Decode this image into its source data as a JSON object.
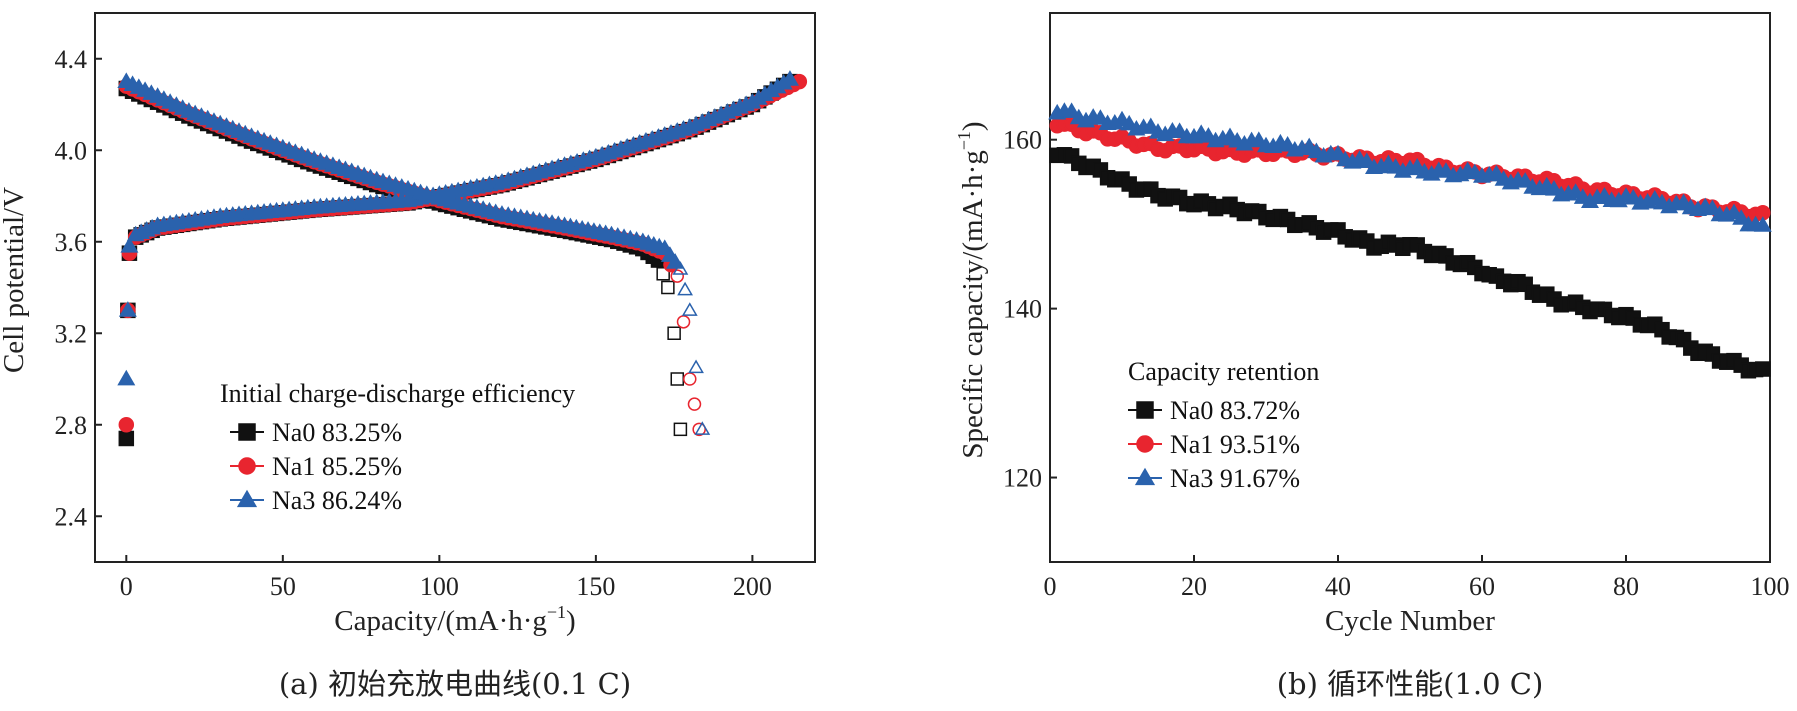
{
  "colors": {
    "Na0": "#111111",
    "Na1": "#e8252f",
    "Na3": "#2a62ad",
    "axis": "#222222"
  },
  "chart_data": [
    {
      "type": "scatter",
      "caption": "(a) 初始充放电曲线(0.1 C)",
      "xlabel": "Capacity/(mA·h·g",
      "xlabel_sup": "−1",
      "xlabel_end": ")",
      "ylabel": "Cell potential/V",
      "xlim": [
        -10,
        220
      ],
      "ylim": [
        2.2,
        4.6
      ],
      "xticks": [
        0,
        50,
        100,
        150,
        200
      ],
      "yticks": [
        2.4,
        2.8,
        3.2,
        3.6,
        4.0,
        4.4
      ],
      "ytick_labels": [
        "2.4",
        "2.8",
        "3.2",
        "3.6",
        "4.0",
        "4.4"
      ],
      "legend_title": "Initial charge-discharge efficiency",
      "legend_position": "lower-left",
      "series": [
        {
          "name": "Na0",
          "label": "Na0 83.25%",
          "marker": "square",
          "charge": [
            [
              0,
              2.74
            ],
            [
              0.5,
              3.3
            ],
            [
              1,
              3.55
            ],
            [
              3,
              3.62
            ],
            [
              10,
              3.66
            ],
            [
              30,
              3.7
            ],
            [
              60,
              3.74
            ],
            [
              90,
              3.77
            ],
            [
              120,
              3.85
            ],
            [
              150,
              3.96
            ],
            [
              180,
              4.09
            ],
            [
              200,
              4.2
            ],
            [
              212,
              4.3
            ]
          ],
          "discharge": [
            [
              0,
              4.27
            ],
            [
              20,
              4.15
            ],
            [
              40,
              4.04
            ],
            [
              60,
              3.94
            ],
            [
              80,
              3.85
            ],
            [
              100,
              3.77
            ],
            [
              120,
              3.7
            ],
            [
              140,
              3.65
            ],
            [
              155,
              3.61
            ],
            [
              165,
              3.57
            ],
            [
              170,
              3.52
            ],
            [
              173,
              3.4
            ],
            [
              175,
              3.2
            ],
            [
              176,
              3.0
            ],
            [
              177,
              2.78
            ]
          ]
        },
        {
          "name": "Na1",
          "label": "Na1 85.25%",
          "marker": "circle",
          "charge": [
            [
              0,
              2.8
            ],
            [
              0.5,
              3.3
            ],
            [
              1,
              3.55
            ],
            [
              3,
              3.62
            ],
            [
              10,
              3.66
            ],
            [
              30,
              3.7
            ],
            [
              60,
              3.74
            ],
            [
              90,
              3.77
            ],
            [
              120,
              3.85
            ],
            [
              150,
              3.96
            ],
            [
              180,
              4.09
            ],
            [
              200,
              4.2
            ],
            [
              215,
              4.3
            ]
          ],
          "discharge": [
            [
              0,
              4.28
            ],
            [
              20,
              4.16
            ],
            [
              40,
              4.05
            ],
            [
              60,
              3.95
            ],
            [
              80,
              3.86
            ],
            [
              100,
              3.78
            ],
            [
              120,
              3.71
            ],
            [
              140,
              3.66
            ],
            [
              155,
              3.62
            ],
            [
              165,
              3.59
            ],
            [
              172,
              3.55
            ],
            [
              176,
              3.45
            ],
            [
              178,
              3.25
            ],
            [
              180,
              3.0
            ],
            [
              183,
              2.78
            ]
          ]
        },
        {
          "name": "Na3",
          "label": "Na3 86.24%",
          "marker": "triangle",
          "charge": [
            [
              0,
              3.0
            ],
            [
              0.5,
              3.3
            ],
            [
              1,
              3.58
            ],
            [
              3,
              3.63
            ],
            [
              10,
              3.67
            ],
            [
              30,
              3.71
            ],
            [
              60,
              3.75
            ],
            [
              90,
              3.78
            ],
            [
              120,
              3.86
            ],
            [
              150,
              3.97
            ],
            [
              180,
              4.1
            ],
            [
              200,
              4.21
            ],
            [
              212,
              4.31
            ]
          ],
          "discharge": [
            [
              0,
              4.3
            ],
            [
              20,
              4.17
            ],
            [
              40,
              4.06
            ],
            [
              60,
              3.96
            ],
            [
              80,
              3.87
            ],
            [
              100,
              3.79
            ],
            [
              120,
              3.72
            ],
            [
              140,
              3.67
            ],
            [
              155,
              3.63
            ],
            [
              165,
              3.6
            ],
            [
              172,
              3.57
            ],
            [
              177,
              3.48
            ],
            [
              180,
              3.3
            ],
            [
              182,
              3.05
            ],
            [
              184,
              2.78
            ]
          ]
        }
      ]
    },
    {
      "type": "scatter",
      "caption": "(b) 循环性能(1.0 C)",
      "xlabel": "Cycle Number",
      "ylabel": "Specific capacity/(mA·h·g",
      "ylabel_sup": "−1",
      "ylabel_end": ")",
      "xlim": [
        0,
        100
      ],
      "ylim": [
        110,
        175
      ],
      "xticks": [
        0,
        20,
        40,
        60,
        80,
        100
      ],
      "yticks": [
        120,
        140,
        160
      ],
      "legend_title": "Capacity retention",
      "legend_position": "lower-left",
      "series": [
        {
          "name": "Na0",
          "label": "Na0 83.72%",
          "marker": "square",
          "points": [
            [
              1,
              158.5
            ],
            [
              5,
              157
            ],
            [
              10,
              155
            ],
            [
              15,
              153.5
            ],
            [
              20,
              152.5
            ],
            [
              25,
              152
            ],
            [
              30,
              151
            ],
            [
              35,
              150
            ],
            [
              40,
              149
            ],
            [
              45,
              147.5
            ],
            [
              50,
              147.5
            ],
            [
              55,
              146
            ],
            [
              60,
              144.5
            ],
            [
              62,
              143.5
            ],
            [
              65,
              143
            ],
            [
              70,
              141
            ],
            [
              75,
              140
            ],
            [
              80,
              139
            ],
            [
              85,
              137.5
            ],
            [
              90,
              135
            ],
            [
              95,
              133.5
            ],
            [
              99,
              132.5
            ]
          ]
        },
        {
          "name": "Na1",
          "label": "Na1 93.51%",
          "marker": "circle",
          "points": [
            [
              1,
              162
            ],
            [
              5,
              161
            ],
            [
              10,
              160
            ],
            [
              15,
              159
            ],
            [
              20,
              159
            ],
            [
              25,
              158.5
            ],
            [
              30,
              158.5
            ],
            [
              35,
              158.5
            ],
            [
              40,
              158
            ],
            [
              45,
              157.5
            ],
            [
              50,
              157.5
            ],
            [
              55,
              156.5
            ],
            [
              60,
              156
            ],
            [
              65,
              155.5
            ],
            [
              70,
              155
            ],
            [
              75,
              154
            ],
            [
              80,
              153.5
            ],
            [
              85,
              153
            ],
            [
              90,
              152
            ],
            [
              95,
              151.5
            ],
            [
              99,
              151
            ]
          ]
        },
        {
          "name": "Na3",
          "label": "Na3 91.67%",
          "marker": "triangle",
          "points": [
            [
              1,
              163.5
            ],
            [
              5,
              162.5
            ],
            [
              10,
              162
            ],
            [
              15,
              161
            ],
            [
              20,
              160.5
            ],
            [
              25,
              160
            ],
            [
              30,
              159.5
            ],
            [
              35,
              159
            ],
            [
              40,
              158
            ],
            [
              45,
              157
            ],
            [
              50,
              156.5
            ],
            [
              55,
              156
            ],
            [
              60,
              156
            ],
            [
              65,
              155
            ],
            [
              70,
              154
            ],
            [
              75,
              153
            ],
            [
              80,
              153
            ],
            [
              85,
              152.5
            ],
            [
              90,
              152
            ],
            [
              95,
              151
            ],
            [
              99,
              149.5
            ]
          ]
        }
      ]
    }
  ]
}
